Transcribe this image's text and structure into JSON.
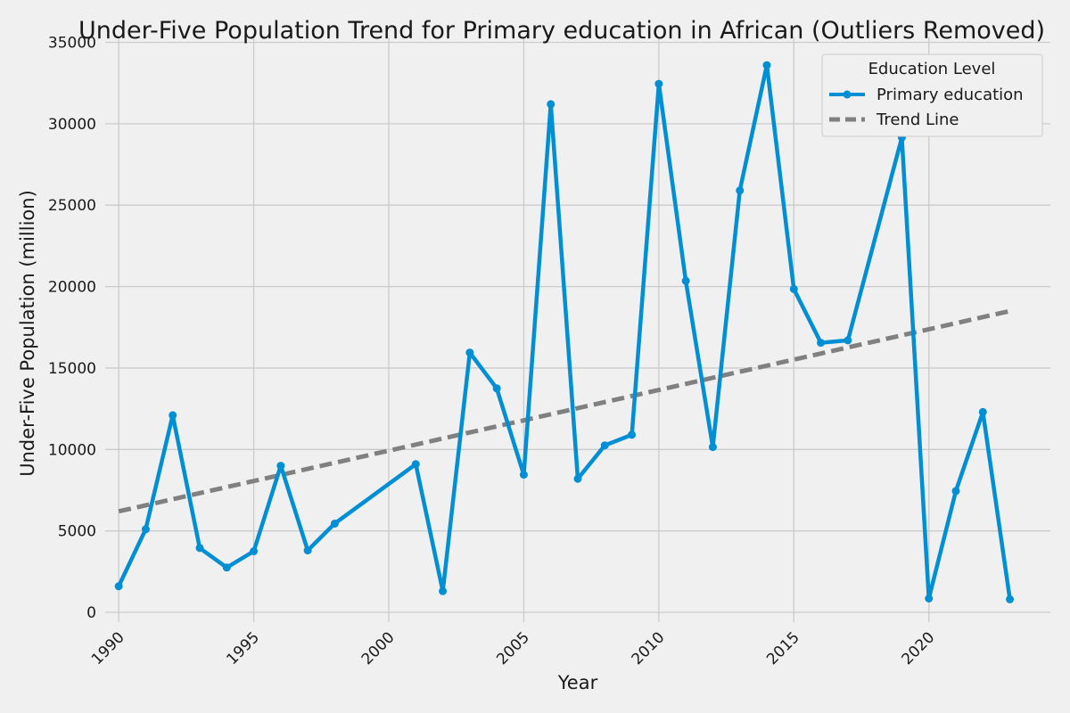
{
  "chart_data": {
    "type": "line",
    "title": "Under-Five Population Trend for Primary education in African (Outliers Removed)",
    "xlabel": "Year",
    "ylabel": "Under-Five Population (million)",
    "xlim": [
      1989.5,
      2024.5
    ],
    "ylim": [
      -600,
      35300
    ],
    "x_ticks": [
      1990,
      1995,
      2000,
      2005,
      2010,
      2015,
      2020
    ],
    "y_ticks": [
      0,
      5000,
      10000,
      15000,
      20000,
      25000,
      30000,
      35000
    ],
    "grid": true,
    "legend": {
      "title": "Education Level",
      "placement": "top-right",
      "entries": [
        "Primary education",
        "Trend Line"
      ]
    },
    "series": [
      {
        "name": "Primary education",
        "style": "solid-with-markers",
        "color": "#008fd5",
        "x": [
          1990,
          1991,
          1992,
          1993,
          1994,
          1995,
          1996,
          1997,
          1998,
          2001,
          2002,
          2003,
          2004,
          2005,
          2006,
          2007,
          2008,
          2009,
          2010,
          2011,
          2012,
          2013,
          2014,
          2015,
          2016,
          2017,
          2019,
          2020,
          2021,
          2022,
          2023
        ],
        "y": [
          1600,
          5100,
          12100,
          3950,
          2750,
          3750,
          9000,
          3800,
          5450,
          9100,
          1300,
          15950,
          13750,
          8450,
          31200,
          8200,
          10250,
          10900,
          32450,
          20350,
          10150,
          25900,
          33600,
          19850,
          16550,
          16700,
          29150,
          850,
          7450,
          12300,
          800
        ]
      },
      {
        "name": "Trend Line",
        "style": "dashed",
        "color": "#808080",
        "x": [
          1990,
          2023
        ],
        "y": [
          6200,
          18500
        ]
      }
    ]
  }
}
